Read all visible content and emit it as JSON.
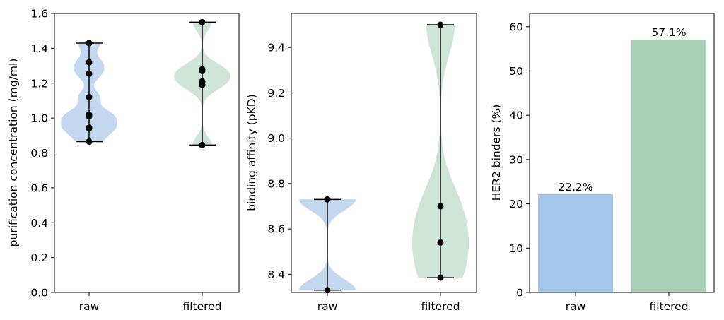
{
  "colors": {
    "raw": "#a4c6ea",
    "filtered": "#a9cfb6",
    "raw_violin": "#c3d7ee",
    "filtered_violin": "#cde4d6",
    "point": "#000000"
  },
  "chart_data": [
    {
      "type": "violin",
      "categories": [
        "raw",
        "filtered"
      ],
      "ylabel": "purification concentration (mg/ml)",
      "ylim": [
        0,
        1.6
      ],
      "yticks": [
        "0.0",
        "0.2",
        "0.4",
        "0.6",
        "0.8",
        "1.0",
        "1.2",
        "1.4",
        "1.6"
      ],
      "series": [
        {
          "category": "raw",
          "points": [
            1.43,
            1.32,
            1.255,
            1.12,
            1.02,
            1.01,
            0.945,
            0.94,
            0.865
          ],
          "min": 0.865,
          "max": 1.43
        },
        {
          "category": "filtered",
          "points": [
            1.55,
            1.28,
            1.27,
            1.21,
            1.19,
            0.845
          ],
          "min": 0.845,
          "max": 1.55
        }
      ]
    },
    {
      "type": "violin",
      "categories": [
        "raw",
        "filtered"
      ],
      "ylabel": "binding affinity (pKD)",
      "ylim": [
        8.32,
        9.55
      ],
      "yticks": [
        "8.4",
        "8.6",
        "8.8",
        "9.0",
        "9.2",
        "9.4"
      ],
      "series": [
        {
          "category": "raw",
          "points": [
            8.73,
            8.33
          ],
          "min": 8.33,
          "max": 8.73
        },
        {
          "category": "filtered",
          "points": [
            9.5,
            8.7,
            8.54,
            8.385
          ],
          "min": 8.385,
          "max": 9.5
        }
      ]
    },
    {
      "type": "bar",
      "categories": [
        "raw",
        "filtered"
      ],
      "values": [
        22.2,
        57.1
      ],
      "data_labels": [
        "22.2%",
        "57.1%"
      ],
      "ylabel": "HER2 binders (%)",
      "ylim": [
        0,
        63
      ],
      "yticks": [
        "0",
        "10",
        "20",
        "30",
        "40",
        "50",
        "60"
      ]
    }
  ]
}
